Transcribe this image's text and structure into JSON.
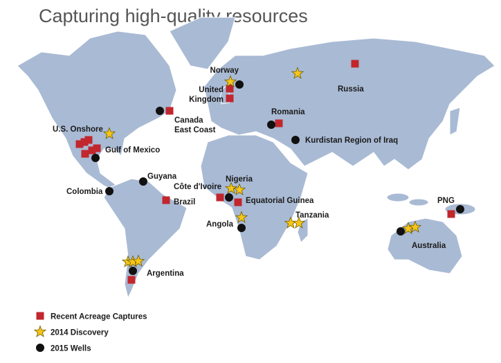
{
  "title": "Capturing high-quality resources",
  "labels": [
    "Russia",
    "Norway",
    [
      "United",
      "Kingdom"
    ],
    [
      "Canada",
      "East Coast"
    ],
    "Romania",
    "U.S. Onshore",
    "Kurdistan Region of Iraq",
    "Gulf of Mexico",
    "Guyana",
    "Colombia",
    "Côte d'Ivoire",
    "Nigeria",
    "Brazil",
    "Equatorial Guinea",
    "PNG",
    "Tanzania",
    "Angola",
    "Australia",
    "Argentina"
  ],
  "legend": [
    "Recent Acreage Captures",
    "2014 Discovery",
    "2015 Wells"
  ]
}
